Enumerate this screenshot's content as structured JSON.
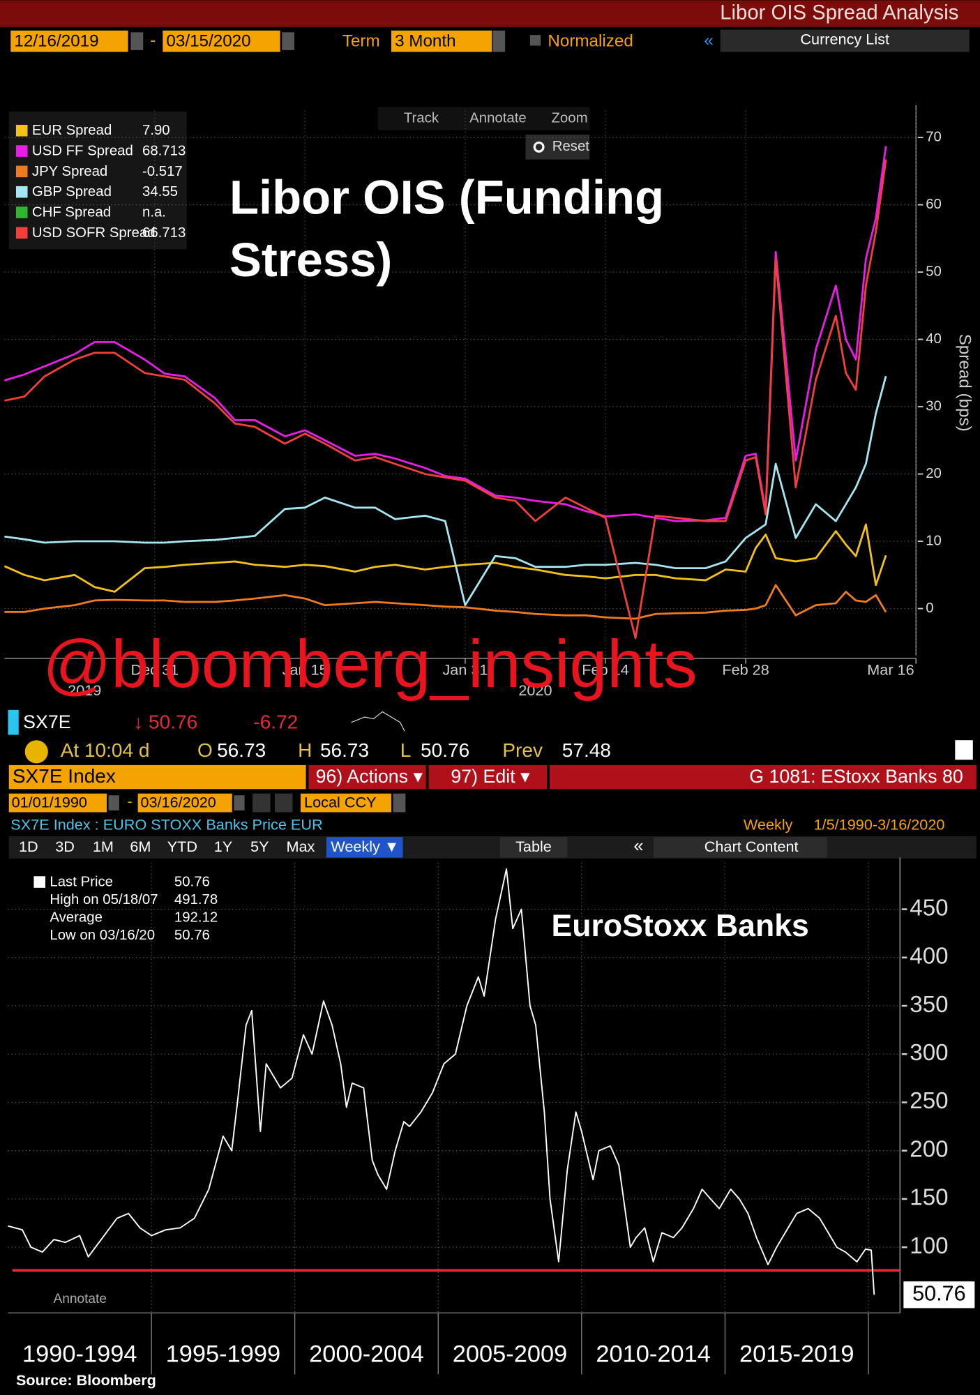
{
  "header": {
    "title": "Libor OIS Spread Analysis",
    "start_date": "12/16/2019",
    "date_sep": "-",
    "end_date": "03/15/2020",
    "term_label": "Term",
    "term_value": "3 Month",
    "normalized": "Normalized",
    "collapse": "«",
    "currency_list": "Currency List"
  },
  "toolbar": {
    "track": "Track",
    "annotate": "Annotate",
    "zoom": "Zoom",
    "reset": "Reset"
  },
  "quote": {
    "ticker": "SX7E",
    "last": "↓ 50.76",
    "change": "-6.72",
    "time": "At 10:04 d",
    "open_label": "O",
    "open": "56.73",
    "high_label": "H",
    "high": "56.73",
    "low_label": "L",
    "low": "50.76",
    "prev_label": "Prev",
    "prev": "57.48"
  },
  "security_bar": {
    "security": "SX7E Index",
    "actions": "96) Actions ▾",
    "edit": "97) Edit ▾",
    "template": "G 1081: EStoxx Banks 80"
  },
  "range_bar": {
    "start_date": "01/01/1990",
    "date_sep": "-",
    "end_date": "03/16/2020",
    "currency": "Local CCY"
  },
  "description": {
    "name": "SX7E Index : EURO STOXX Banks Price EUR",
    "frequency": "Weekly",
    "range": "1/5/1990-3/16/2020"
  },
  "period_buttons": [
    "1D",
    "3D",
    "1M",
    "6M",
    "YTD",
    "1Y",
    "5Y",
    "Max"
  ],
  "chart_toolbar": {
    "frequency": "Weekly ▼",
    "table": "Table",
    "collapse": "«",
    "chart_content": "Chart Content"
  },
  "chart_data": [
    {
      "type": "line",
      "title_lines": [
        "Libor OIS (Funding",
        "Stress)"
      ],
      "watermark": "@bloomberg_insights",
      "y_label": "Spread (bps)",
      "x": [
        "2019-12-16",
        "2019-12-18",
        "2019-12-20",
        "2019-12-23",
        "2019-12-25",
        "2019-12-27",
        "2019-12-30",
        "2020-01-01",
        "2020-01-03",
        "2020-01-06",
        "2020-01-08",
        "2020-01-10",
        "2020-01-13",
        "2020-01-15",
        "2020-01-17",
        "2020-01-20",
        "2020-01-22",
        "2020-01-24",
        "2020-01-27",
        "2020-01-29",
        "2020-01-31",
        "2020-02-03",
        "2020-02-05",
        "2020-02-07",
        "2020-02-10",
        "2020-02-12",
        "2020-02-14",
        "2020-02-17",
        "2020-02-19",
        "2020-02-21",
        "2020-02-24",
        "2020-02-26",
        "2020-02-28",
        "2020-02-29",
        "2020-03-01",
        "2020-03-02",
        "2020-03-04",
        "2020-03-06",
        "2020-03-08",
        "2020-03-09",
        "2020-03-10",
        "2020-03-11",
        "2020-03-12",
        "2020-03-13"
      ],
      "xlim": [
        "2019-12-16",
        "2020-03-16"
      ],
      "xticks": [
        {
          "value": "2019-12-31",
          "label": "Dec 31"
        },
        {
          "value": "2020-01-15",
          "label": "Jan 15"
        },
        {
          "value": "2020-01-31",
          "label": "Jan 31"
        },
        {
          "value": "2020-02-14",
          "label": "Feb 14"
        },
        {
          "value": "2020-02-28",
          "label": "Feb 28"
        },
        {
          "value": "2020-03-16",
          "label": "Mar 16"
        }
      ],
      "year_labels": [
        {
          "value": "2019-12-24",
          "label": "2019"
        },
        {
          "value": "2020-02-07",
          "label": "2020"
        }
      ],
      "ylim": [
        -7,
        74
      ],
      "yticks": [
        0,
        10,
        20,
        30,
        40,
        50,
        60,
        70
      ],
      "grid": true,
      "legend_position": "upper left",
      "series": [
        {
          "name": "EUR Spread",
          "color": "#f2c21b",
          "legend_value": "7.90",
          "values": [
            6.3,
            5.0,
            4.2,
            5.0,
            3.2,
            2.5,
            6.0,
            6.2,
            6.5,
            6.8,
            7.0,
            6.5,
            6.2,
            6.5,
            6.3,
            5.5,
            6.2,
            6.5,
            5.8,
            6.2,
            6.5,
            6.8,
            6.2,
            5.8,
            5.0,
            4.8,
            4.5,
            5.0,
            5.0,
            4.5,
            4.2,
            5.8,
            5.5,
            9.0,
            11.0,
            7.5,
            7.0,
            7.5,
            11.5,
            9.5,
            7.8,
            12.5,
            3.5,
            7.9
          ]
        },
        {
          "name": "USD FF Spread",
          "color": "#e81ee8",
          "legend_value": "68.713",
          "values": [
            33.9,
            34.8,
            36.0,
            37.8,
            39.6,
            39.6,
            37.0,
            34.9,
            34.5,
            31.3,
            28.0,
            28.0,
            25.6,
            26.5,
            25.0,
            22.7,
            23.0,
            22.3,
            20.9,
            19.7,
            19.3,
            16.8,
            16.5,
            16.0,
            15.5,
            14.5,
            13.7,
            14.0,
            13.5,
            13.0,
            13.1,
            13.5,
            22.7,
            23.0,
            14.5,
            53.0,
            22.0,
            38.5,
            48.0,
            40.0,
            37.0,
            52.0,
            58.0,
            68.713
          ]
        },
        {
          "name": "JPY Spread",
          "color": "#f07a1e",
          "legend_value": "-0.517",
          "values": [
            -0.5,
            -0.5,
            0,
            0.5,
            1.2,
            1.3,
            1.2,
            1.2,
            1.0,
            1.0,
            1.2,
            1.5,
            2.0,
            1.5,
            0.5,
            0.8,
            1.0,
            0.8,
            0.5,
            0.3,
            0.2,
            -0.3,
            -0.5,
            -0.8,
            -1.0,
            -1.0,
            -1.3,
            -1.5,
            -0.8,
            -0.7,
            -0.6,
            -0.3,
            -0.2,
            0,
            0.5,
            3.5,
            -1.0,
            0.5,
            0.8,
            2.5,
            1.2,
            1.0,
            2.0,
            -0.517
          ]
        },
        {
          "name": "GBP Spread",
          "color": "#a6e6f0",
          "legend_value": "34.55",
          "values": [
            10.7,
            10.3,
            9.8,
            10.0,
            10.0,
            10.0,
            9.8,
            9.8,
            10.0,
            10.2,
            10.5,
            10.8,
            14.8,
            15.0,
            16.5,
            15.0,
            15.0,
            13.3,
            13.8,
            13.0,
            0.5,
            7.8,
            7.5,
            6.2,
            6.2,
            6.5,
            6.5,
            6.8,
            6.5,
            6.0,
            6.0,
            7.0,
            10.5,
            11.5,
            12.5,
            21.5,
            10.5,
            15.5,
            13.0,
            15.5,
            18.0,
            21.5,
            29.0,
            34.55
          ]
        },
        {
          "name": "CHF Spread",
          "color": "#2fb52f",
          "legend_value": "n.a.",
          "values": [
            null,
            null,
            null,
            null,
            null,
            null,
            null,
            null,
            null,
            null,
            null,
            null,
            null,
            null,
            null,
            null,
            null,
            null,
            null,
            null,
            null,
            null,
            null,
            null,
            null,
            null,
            null,
            null,
            null,
            null,
            null,
            null,
            null,
            null,
            null,
            null,
            null,
            null,
            null,
            null,
            null,
            null,
            null,
            null
          ]
        },
        {
          "name": "USD SOFR Spread",
          "color": "#f0403c",
          "legend_value": "66.713",
          "values": [
            30.9,
            31.5,
            34.5,
            37.0,
            38.0,
            38.0,
            35.0,
            34.5,
            34.0,
            30.5,
            27.5,
            27.0,
            24.5,
            26.0,
            24.5,
            22.0,
            22.5,
            21.5,
            20.0,
            19.5,
            19.0,
            16.5,
            16.0,
            13.0,
            16.5,
            15.0,
            13.5,
            -4.4,
            13.8,
            13.5,
            13.0,
            13.0,
            22.0,
            22.5,
            14.0,
            52.0,
            18.0,
            34.0,
            43.5,
            35.0,
            32.5,
            48.0,
            56.0,
            66.713
          ]
        }
      ]
    },
    {
      "type": "line",
      "annotation": "EuroStoxx Banks",
      "annotate_hint": "Annotate",
      "x": [
        1990.0,
        1990.5,
        1990.8,
        1991.2,
        1991.6,
        1992.0,
        1992.5,
        1992.8,
        1993.3,
        1993.8,
        1994.2,
        1994.6,
        1995.0,
        1995.5,
        1996.0,
        1996.5,
        1997.0,
        1997.5,
        1997.8,
        1998.0,
        1998.3,
        1998.5,
        1998.8,
        1999.0,
        1999.5,
        1999.9,
        2000.3,
        2000.6,
        2001.0,
        2001.3,
        2001.6,
        2001.8,
        2002.0,
        2002.4,
        2002.7,
        2002.9,
        2003.2,
        2003.5,
        2003.8,
        2004.0,
        2004.4,
        2004.8,
        2005.2,
        2005.6,
        2006.0,
        2006.4,
        2006.6,
        2007.0,
        2007.38,
        2007.6,
        2007.9,
        2008.2,
        2008.4,
        2008.7,
        2008.9,
        2009.2,
        2009.5,
        2009.8,
        2010.0,
        2010.4,
        2010.6,
        2011.0,
        2011.3,
        2011.7,
        2011.9,
        2012.2,
        2012.5,
        2012.8,
        2013.2,
        2013.5,
        2013.9,
        2014.2,
        2014.5,
        2014.8,
        2015.2,
        2015.5,
        2015.8,
        2016.1,
        2016.5,
        2016.8,
        2017.2,
        2017.5,
        2017.9,
        2018.3,
        2018.6,
        2018.9,
        2019.2,
        2019.6,
        2019.9,
        2020.1,
        2020.2
      ],
      "xlim": [
        1990,
        2021.1
      ],
      "xticks": [
        1995,
        2000,
        2005,
        2010,
        2015,
        2020
      ],
      "period_labels": [
        "1990-1994",
        "1995-1999",
        "2000-2004",
        "2005-2009",
        "2010-2014",
        "2015-2019"
      ],
      "ylim": [
        32,
        498
      ],
      "yticks": [
        100,
        150,
        200,
        250,
        300,
        350,
        400,
        450
      ],
      "grid": true,
      "legend_position": "upper left",
      "reference_line": {
        "value": 76,
        "color": "#e8283c"
      },
      "series": [
        {
          "name": "Last Price",
          "color": "#ffffff",
          "legend_value": "50.76",
          "values": [
            122,
            118,
            100,
            95,
            108,
            105,
            112,
            90,
            110,
            130,
            135,
            120,
            112,
            118,
            120,
            130,
            160,
            215,
            200,
            250,
            330,
            345,
            220,
            290,
            265,
            275,
            320,
            300,
            355,
            330,
            290,
            245,
            270,
            265,
            190,
            175,
            160,
            200,
            230,
            225,
            240,
            260,
            290,
            300,
            350,
            380,
            360,
            440,
            491.78,
            430,
            450,
            350,
            330,
            240,
            150,
            85,
            180,
            240,
            220,
            170,
            200,
            205,
            185,
            100,
            110,
            120,
            85,
            115,
            110,
            120,
            140,
            160,
            150,
            140,
            160,
            150,
            135,
            110,
            82,
            100,
            120,
            135,
            140,
            130,
            115,
            100,
            95,
            85,
            98,
            97,
            50.76
          ]
        }
      ],
      "stats": [
        {
          "label": "High on 05/18/07",
          "value": "491.78"
        },
        {
          "label": "Average",
          "value": "192.12"
        },
        {
          "label": "Low on 03/16/20",
          "value": "50.76"
        }
      ]
    }
  ],
  "source": "Source: Bloomberg"
}
